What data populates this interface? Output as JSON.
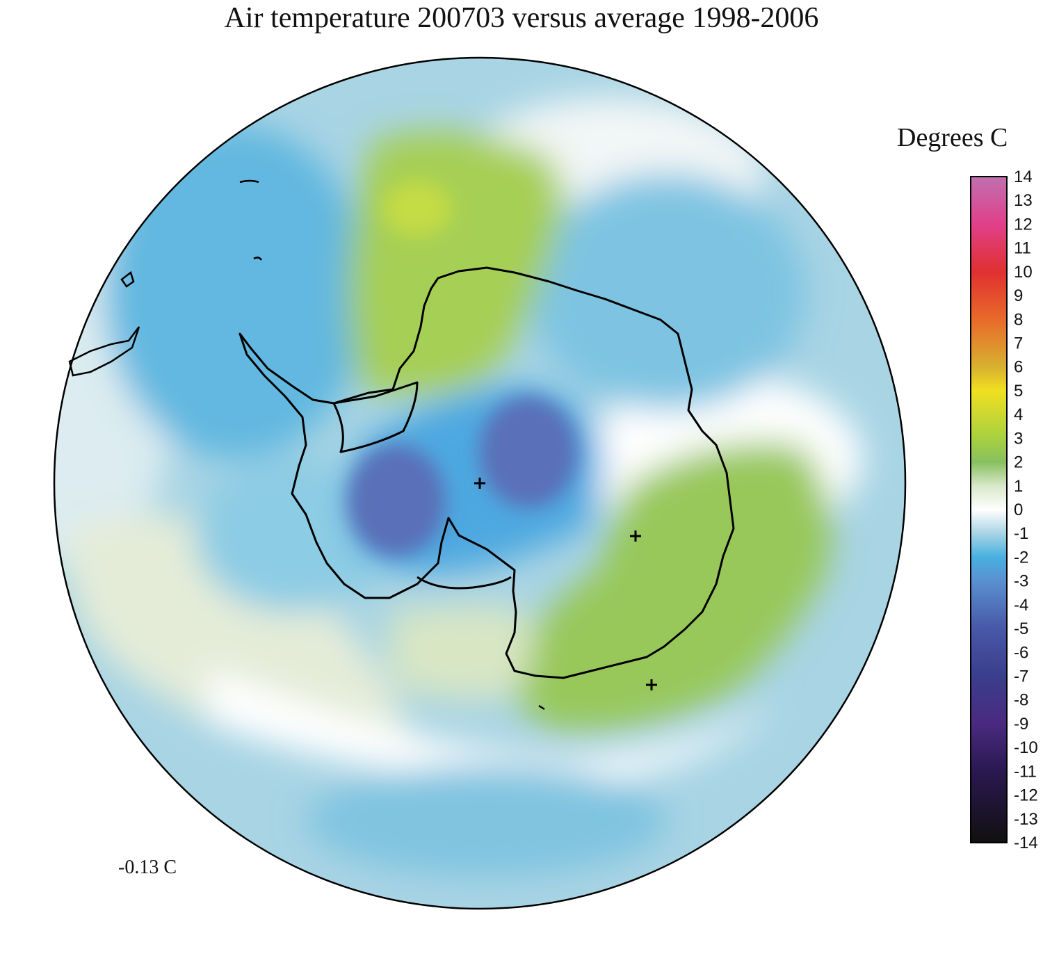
{
  "title": "Air temperature 200703 versus average 1998-2006",
  "units_label": "Degrees C",
  "mean_label": "-0.13 C",
  "colorbar": {
    "min": -14,
    "max": 14,
    "ticks": [
      14,
      13,
      12,
      11,
      10,
      9,
      8,
      7,
      6,
      5,
      4,
      3,
      2,
      1,
      0,
      -1,
      -2,
      -3,
      -4,
      -5,
      -6,
      -7,
      -8,
      -9,
      -10,
      -11,
      -12,
      -13,
      -14
    ],
    "tick_labels": [
      "14",
      "13",
      "12",
      "11",
      "10",
      "9",
      "8",
      "7",
      "6",
      "5",
      "4",
      "3",
      "2",
      "1",
      "0",
      "-1",
      "-2",
      "-3",
      "-4",
      "-5",
      "-6",
      "-7",
      "-8",
      "-9",
      "-10",
      "-11",
      "-12",
      "-13",
      "-14"
    ],
    "stops": [
      {
        "value": 14,
        "color": "#c070b0"
      },
      {
        "value": 12,
        "color": "#e0408a"
      },
      {
        "value": 10,
        "color": "#e03030"
      },
      {
        "value": 8,
        "color": "#e86a2a"
      },
      {
        "value": 6,
        "color": "#d8b030"
      },
      {
        "value": 5,
        "color": "#f0e020"
      },
      {
        "value": 3,
        "color": "#a8d040"
      },
      {
        "value": 2,
        "color": "#88c060"
      },
      {
        "value": 1,
        "color": "#d8e8c8"
      },
      {
        "value": 0,
        "color": "#ffffff"
      },
      {
        "value": -1,
        "color": "#a8d4e4"
      },
      {
        "value": -2,
        "color": "#48b0e0"
      },
      {
        "value": -3,
        "color": "#5a90d0"
      },
      {
        "value": -5,
        "color": "#4858a8"
      },
      {
        "value": -7,
        "color": "#3a3e8c"
      },
      {
        "value": -9,
        "color": "#4a2a80"
      },
      {
        "value": -11,
        "color": "#2a1850"
      },
      {
        "value": -14,
        "color": "#101010"
      }
    ]
  },
  "map": {
    "projection": "south-polar-stereographic",
    "colors": {
      "ocean_light_blue": "#a8d4e4",
      "mid_blue": "#6cbde0",
      "deep_blue": "#5a8fd0",
      "dark_purple_blue": "#5a70b8",
      "green": "#9ccc50",
      "pale_green": "#d8e8c8",
      "coastline": "#000000"
    },
    "markers": [
      "plus",
      "plus",
      "plus"
    ]
  }
}
